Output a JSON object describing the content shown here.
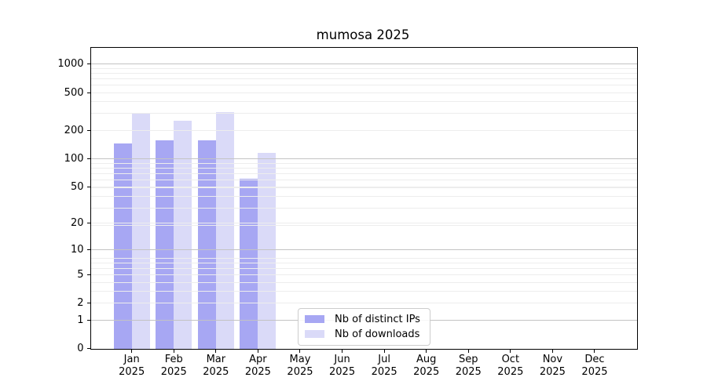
{
  "chart_data": {
    "type": "bar",
    "title": "mumosa 2025",
    "yscale": "log1p",
    "ylim": [
      0,
      1483
    ],
    "grid": "on",
    "categories": [
      "Jan",
      "Feb",
      "Mar",
      "Apr",
      "May",
      "Jun",
      "Jul",
      "Aug",
      "Sep",
      "Oct",
      "Nov",
      "Dec"
    ],
    "category_year": "2025",
    "series": [
      {
        "name": "Nb of distinct IPs",
        "color": "#a7a7f3",
        "values": [
          145,
          157,
          157,
          61,
          null,
          null,
          null,
          null,
          null,
          null,
          null,
          null
        ]
      },
      {
        "name": "Nb of downloads",
        "color": "#dadaf8",
        "values": [
          299,
          252,
          310,
          114,
          null,
          null,
          null,
          null,
          null,
          null,
          null,
          null
        ]
      }
    ],
    "yticks": [
      1000,
      500,
      200,
      100,
      50,
      20,
      10,
      5,
      2,
      1,
      0
    ],
    "major_grid_ticks": [
      1,
      10,
      100,
      1000
    ],
    "colors": {
      "grid_major": "#c3c3c3",
      "grid_minor": "#ededed",
      "spine": "#000000",
      "background": "#ffffff",
      "text": "#000000"
    },
    "legend": {
      "position": "lower-center",
      "frame": true
    }
  }
}
